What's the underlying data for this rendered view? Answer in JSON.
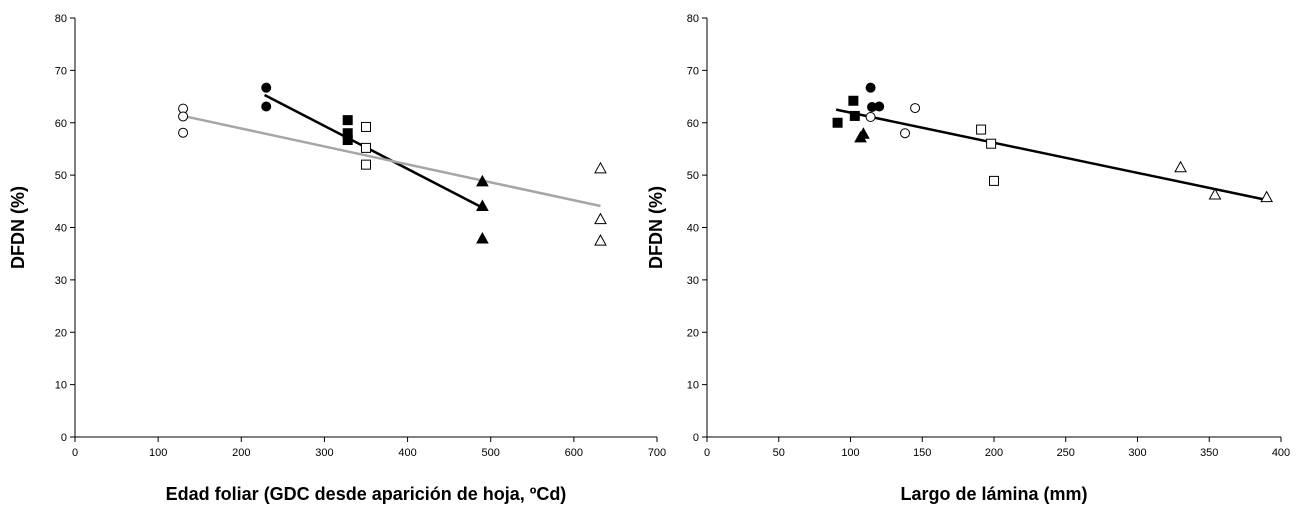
{
  "chart_data": [
    {
      "type": "scatter",
      "xlabel": "Edad foliar (GDC desde aparición de hoja, ºCd)",
      "ylabel": "DFDN (%)",
      "xlim": [
        0,
        700
      ],
      "ylim": [
        0,
        80
      ],
      "xticks": [
        0,
        100,
        200,
        300,
        400,
        500,
        600,
        700
      ],
      "yticks": [
        0,
        10,
        20,
        30,
        40,
        50,
        60,
        70,
        80
      ],
      "grid": false,
      "colors": {
        "black_line": "#000000",
        "gray_line": "#a6a6a6"
      },
      "series": [
        {
          "marker": "circle-open",
          "points": [
            [
              130,
              62.7
            ],
            [
              130,
              61.2
            ],
            [
              130,
              58.1
            ]
          ]
        },
        {
          "marker": "circle-filled",
          "points": [
            [
              230,
              66.7
            ],
            [
              230,
              63.1
            ]
          ]
        },
        {
          "marker": "square-filled",
          "points": [
            [
              328,
              60.5
            ],
            [
              328,
              58.0
            ],
            [
              328,
              56.7
            ]
          ]
        },
        {
          "marker": "square-open",
          "points": [
            [
              350,
              59.2
            ],
            [
              350,
              55.2
            ],
            [
              350,
              52.0
            ]
          ]
        },
        {
          "marker": "triangle-filled",
          "points": [
            [
              490,
              48.8
            ],
            [
              490,
              44.1
            ],
            [
              490,
              37.9
            ]
          ]
        },
        {
          "marker": "triangle-open",
          "points": [
            [
              632,
              51.3
            ],
            [
              632,
              41.6
            ],
            [
              632,
              37.5
            ]
          ]
        }
      ],
      "lines": [
        {
          "color": "#000000",
          "x": [
            228,
            490
          ],
          "y": [
            65.3,
            43.8
          ]
        },
        {
          "color": "#a6a6a6",
          "x": [
            130,
            632
          ],
          "y": [
            61.3,
            44.1
          ]
        }
      ]
    },
    {
      "type": "scatter",
      "xlabel": "Largo de lámina (mm)",
      "ylabel": "DFDN (%)",
      "xlim": [
        0,
        400
      ],
      "ylim": [
        0,
        80
      ],
      "xticks": [
        0,
        50,
        100,
        150,
        200,
        250,
        300,
        350,
        400
      ],
      "yticks": [
        0,
        10,
        20,
        30,
        40,
        50,
        60,
        70,
        80
      ],
      "grid": false,
      "colors": {
        "black_line": "#000000"
      },
      "series": [
        {
          "marker": "square-filled",
          "points": [
            [
              91,
              60.0
            ],
            [
              102,
              64.2
            ],
            [
              103,
              61.3
            ]
          ]
        },
        {
          "marker": "triangle-filled",
          "points": [
            [
              107,
              57.2
            ],
            [
              109,
              57.9
            ]
          ]
        },
        {
          "marker": "circle-filled",
          "points": [
            [
              114,
              66.7
            ],
            [
              115,
              63.0
            ],
            [
              120,
              63.1
            ]
          ]
        },
        {
          "marker": "circle-open",
          "points": [
            [
              114,
              61.1
            ],
            [
              138,
              58.0
            ],
            [
              145,
              62.8
            ]
          ]
        },
        {
          "marker": "square-open",
          "points": [
            [
              191,
              58.7
            ],
            [
              198,
              56.0
            ],
            [
              200,
              48.9
            ]
          ]
        },
        {
          "marker": "triangle-open",
          "points": [
            [
              330,
              51.5
            ],
            [
              354,
              46.3
            ],
            [
              390,
              45.8
            ]
          ]
        }
      ],
      "lines": [
        {
          "color": "#000000",
          "x": [
            90,
            391
          ],
          "y": [
            62.5,
            45.2
          ]
        }
      ]
    }
  ]
}
